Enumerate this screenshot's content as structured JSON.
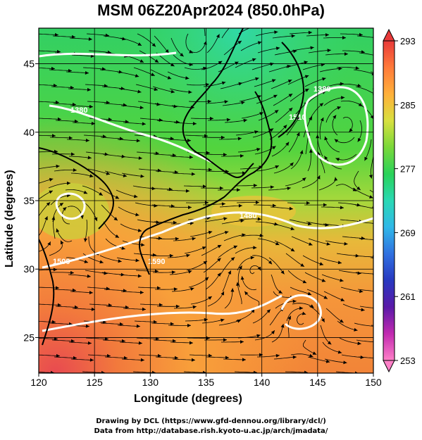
{
  "title": "MSM 06Z20Apr2024 (850.0hPa)",
  "x_axis": {
    "label": "Longitude (degrees)",
    "range": [
      120,
      150
    ],
    "ticks": [
      120,
      125,
      130,
      135,
      140,
      145,
      150
    ]
  },
  "y_axis": {
    "label": "Latitude  (degrees)",
    "range": [
      22.4,
      47.6
    ],
    "ticks": [
      25,
      30,
      35,
      40,
      45
    ]
  },
  "colorbar": {
    "min": 253,
    "max": 293,
    "tick_labels": [
      "293",
      "285",
      "277",
      "269",
      "261",
      "253"
    ],
    "colors": [
      "#e83a3a",
      "#ff7a3a",
      "#ffb03a",
      "#d8e040",
      "#7ad83a",
      "#2ad25a",
      "#2ad8b4",
      "#30b8e8",
      "#3070e0",
      "#2838c0",
      "#5a1aa8",
      "#c22ab0",
      "#ff80c8"
    ]
  },
  "contour_labels": [
    "1380",
    "1380",
    "1510",
    "1500",
    "1590",
    "1480"
  ],
  "credits": {
    "line1": "Drawing by DCL (https://www.gfd-dennou.org/library/dcl/)",
    "line2": "Data from http://database.rish.kyoto-u.ac.jp/arch/jmadata/"
  }
}
